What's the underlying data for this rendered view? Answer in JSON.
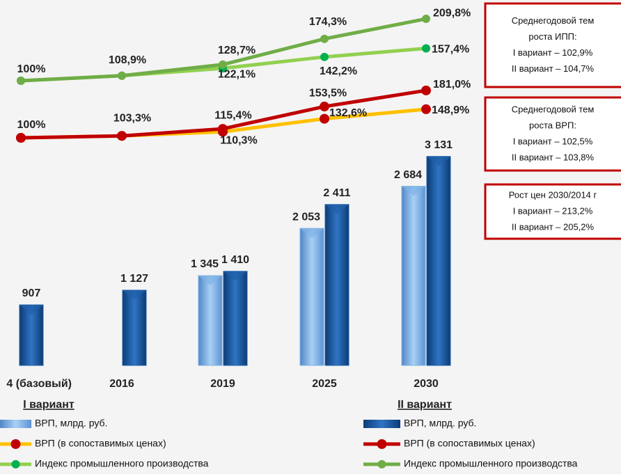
{
  "chart_data": {
    "type": "bar",
    "categories": [
      "4 (базовый)",
      "2016",
      "2019",
      "2025",
      "2030"
    ],
    "variants": [
      {
        "title": "I вариант",
        "bars": {
          "name": "ВРП, млрд. руб.",
          "color": "#7fb2e5",
          "values": [
            null,
            null,
            1345,
            2053,
            2684
          ],
          "value_labels": [
            null,
            null,
            "1 345",
            "2 053",
            "2 684"
          ]
        },
        "lines": [
          {
            "type": "line",
            "name": "ВРП (в сопоставимых ценах)",
            "color": "#ffc000",
            "marker": "#c00000",
            "values": [
              100,
              103.3,
              110.3,
              132.6,
              148.9
            ],
            "value_labels": [
              "100%",
              "103,3%",
              "110,3%",
              "132,6%",
              "148,9%"
            ]
          },
          {
            "type": "line",
            "name": "Индекс промышленного производства",
            "color": "#92d050",
            "marker": "#00b050",
            "values": [
              100,
              108.9,
              122.1,
              142.2,
              157.4
            ],
            "value_labels": [
              "100%",
              "108,9%",
              "122,1%",
              "142,2%",
              "157,4%"
            ]
          }
        ]
      },
      {
        "title": "II вариант",
        "bars": {
          "name": "ВРП, млрд. руб.",
          "color": "#1f5fa8",
          "values": [
            907,
            1127,
            1410,
            2411,
            3131
          ],
          "value_labels": [
            "907",
            "1 127",
            "1 410",
            "2 411",
            "3 131"
          ]
        },
        "lines": [
          {
            "type": "line",
            "name": "ВРП (в сопоставимых ценах)",
            "color": "#c00000",
            "marker": "#c00000",
            "values": [
              100,
              103.3,
              115.4,
              153.5,
              181.0
            ],
            "value_labels": [
              null,
              null,
              "115,4%",
              "153,5%",
              "181,0%"
            ]
          },
          {
            "type": "line",
            "name": "Индекс промышленного производства",
            "color": "#70ad47",
            "marker": "#70ad47",
            "values": [
              100,
              108.9,
              128.7,
              174.3,
              209.8
            ],
            "value_labels": [
              null,
              null,
              "128,7%",
              "174,3%",
              "209,8%"
            ]
          }
        ]
      }
    ],
    "notes": [
      [
        "Среднегодовой тем",
        "роста ИПП:",
        "I вариант – 102,9%",
        "II вариант – 104,7%"
      ],
      [
        "Среднегодовой тем",
        "роста ВРП:",
        "I вариант – 102,5%",
        "II вариант – 103,8%"
      ],
      [
        "Рост цен 2030/2014 г",
        "I вариант – 213,2%",
        "II вариант – 205,2%"
      ]
    ]
  }
}
